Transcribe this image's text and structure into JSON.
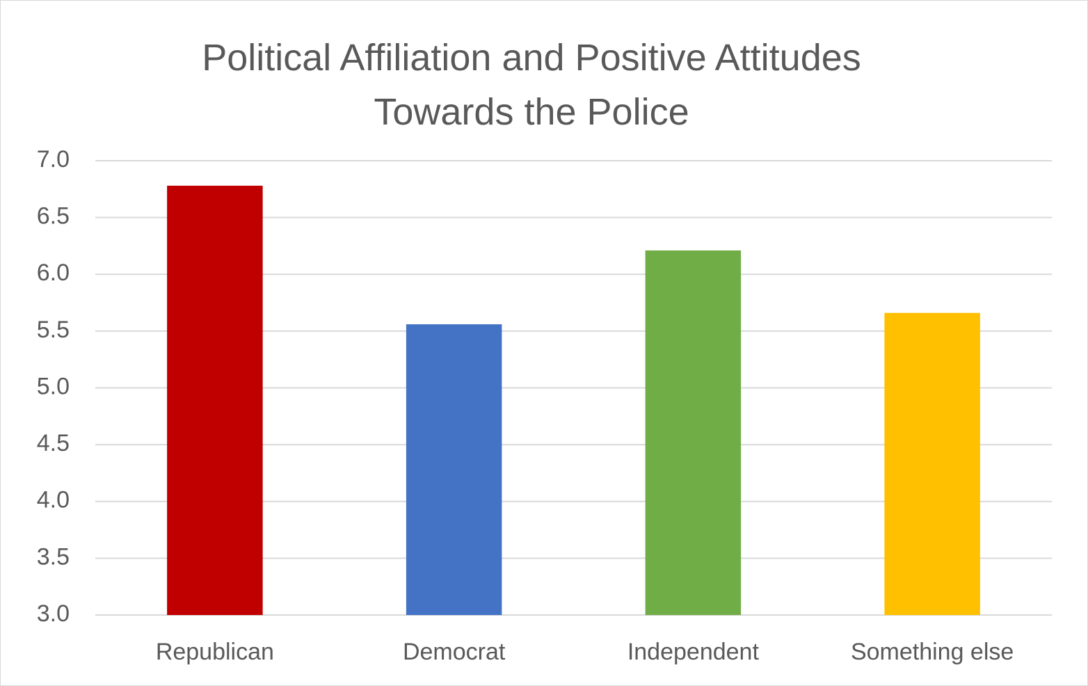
{
  "chart_data": {
    "type": "bar",
    "title": "Political Affiliation and Positive Attitudes Towards the Police",
    "categories": [
      "Republican",
      "Democrat",
      "Independent",
      "Something else"
    ],
    "values": [
      6.78,
      5.56,
      6.21,
      5.66
    ],
    "colors": [
      "#c00000",
      "#4472c4",
      "#70ad47",
      "#ffc000"
    ],
    "ylim": [
      3,
      7
    ],
    "yticks": [
      {
        "value": 3,
        "label": "3.0"
      },
      {
        "value": 3.5,
        "label": "3.5"
      },
      {
        "value": 4,
        "label": "4.0"
      },
      {
        "value": 4.5,
        "label": "4.5"
      },
      {
        "value": 5,
        "label": "5.0"
      },
      {
        "value": 5.5,
        "label": "5.5"
      },
      {
        "value": 6,
        "label": "6.0"
      },
      {
        "value": 6.5,
        "label": "6.5"
      },
      {
        "value": 7,
        "label": "7.0"
      }
    ],
    "grid": true
  }
}
